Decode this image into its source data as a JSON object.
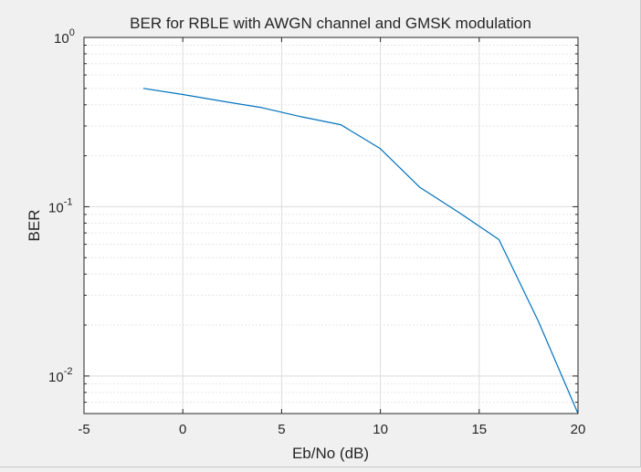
{
  "chart_data": {
    "type": "line",
    "title": "BER for RBLE with AWGN channel and GMSK modulation",
    "xlabel": "Eb/No (dB)",
    "ylabel": "BER",
    "xlim": [
      -5,
      20
    ],
    "ylim": [
      0.006,
      1
    ],
    "yscale": "log",
    "grid": true,
    "x_ticks": [
      -5,
      0,
      5,
      10,
      15,
      20
    ],
    "x_tick_labels": [
      "-5",
      "0",
      "5",
      "10",
      "15",
      "20"
    ],
    "y_ticks": [
      {
        "value": 1,
        "base": "10",
        "exp": "0"
      },
      {
        "value": 0.1,
        "base": "10",
        "exp": "-1"
      },
      {
        "value": 0.01,
        "base": "10",
        "exp": "-2"
      }
    ],
    "series": [
      {
        "color": "#0072bd",
        "x": [
          -2,
          0,
          2,
          4,
          6,
          8,
          10,
          12,
          14,
          16,
          18,
          20
        ],
        "y": [
          0.5,
          0.46,
          0.42,
          0.385,
          0.34,
          0.305,
          0.22,
          0.13,
          0.092,
          0.064,
          0.021,
          0.006
        ]
      }
    ]
  }
}
